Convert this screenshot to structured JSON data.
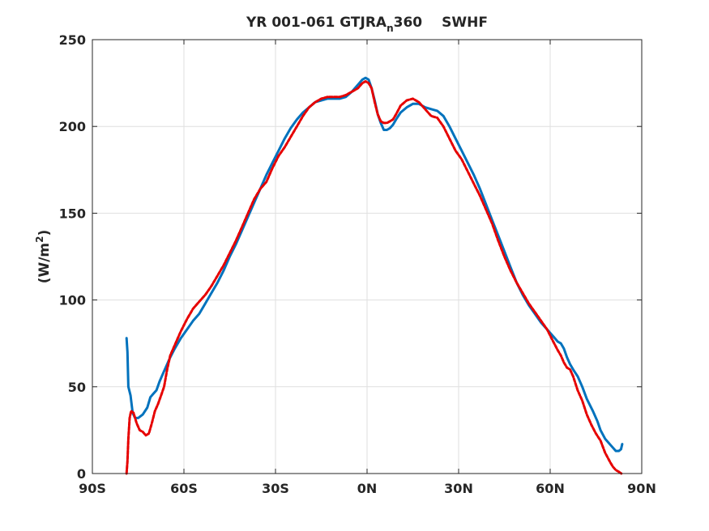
{
  "chart_data": {
    "type": "line",
    "title": {
      "prefix": "YR 001-061 GTJRA",
      "subscript": "n",
      "suffix": "360",
      "field": "SWHF"
    },
    "xlabel": "",
    "ylabel": {
      "prefix": "(W/m",
      "superscript": "2",
      "suffix": ")"
    },
    "xlim": [
      -90,
      90
    ],
    "ylim": [
      0,
      250
    ],
    "grid": true,
    "x_ticks": [
      {
        "value": -90,
        "label": "90S"
      },
      {
        "value": -60,
        "label": "60S"
      },
      {
        "value": -30,
        "label": "30S"
      },
      {
        "value": 0,
        "label": "0N"
      },
      {
        "value": 30,
        "label": "30N"
      },
      {
        "value": 60,
        "label": "60N"
      },
      {
        "value": 90,
        "label": "90N"
      }
    ],
    "y_ticks": [
      {
        "value": 0,
        "label": "0"
      },
      {
        "value": 50,
        "label": "50"
      },
      {
        "value": 100,
        "label": "100"
      },
      {
        "value": 150,
        "label": "150"
      },
      {
        "value": 200,
        "label": "200"
      },
      {
        "value": 250,
        "label": "250"
      }
    ],
    "series": [
      {
        "color": "#0072bd",
        "style": "solid",
        "points": [
          [
            -78.8,
            78
          ],
          [
            -78.5,
            70
          ],
          [
            -78.2,
            50
          ],
          [
            -77.5,
            45
          ],
          [
            -76.8,
            35
          ],
          [
            -76,
            32
          ],
          [
            -75,
            32
          ],
          [
            -73.5,
            34
          ],
          [
            -72,
            38
          ],
          [
            -71,
            44
          ],
          [
            -70,
            46
          ],
          [
            -69,
            48
          ],
          [
            -68,
            53
          ],
          [
            -67,
            57
          ],
          [
            -66,
            61
          ],
          [
            -64.5,
            67
          ],
          [
            -63,
            72
          ],
          [
            -61,
            78
          ],
          [
            -59,
            83
          ],
          [
            -57,
            88
          ],
          [
            -55,
            92
          ],
          [
            -53,
            98
          ],
          [
            -51,
            104
          ],
          [
            -49,
            110
          ],
          [
            -47,
            117
          ],
          [
            -45,
            125
          ],
          [
            -43,
            132
          ],
          [
            -41,
            140
          ],
          [
            -39,
            148
          ],
          [
            -37,
            156
          ],
          [
            -35,
            164
          ],
          [
            -33,
            172
          ],
          [
            -31,
            179
          ],
          [
            -29,
            186
          ],
          [
            -27,
            193
          ],
          [
            -25,
            199
          ],
          [
            -23,
            204
          ],
          [
            -21,
            208
          ],
          [
            -19,
            211
          ],
          [
            -17,
            214
          ],
          [
            -15,
            215
          ],
          [
            -13,
            216
          ],
          [
            -11,
            216
          ],
          [
            -9,
            216
          ],
          [
            -7,
            217
          ],
          [
            -5,
            220
          ],
          [
            -3,
            224
          ],
          [
            -1.5,
            227
          ],
          [
            -0.5,
            228
          ],
          [
            0.5,
            227
          ],
          [
            1.5,
            222
          ],
          [
            2.5,
            215
          ],
          [
            3.5,
            207
          ],
          [
            4.5,
            202
          ],
          [
            5.5,
            198
          ],
          [
            6.5,
            198
          ],
          [
            7.5,
            199
          ],
          [
            8.5,
            201
          ],
          [
            9.5,
            204
          ],
          [
            11,
            208
          ],
          [
            13,
            211
          ],
          [
            15,
            213
          ],
          [
            17,
            213
          ],
          [
            19,
            211
          ],
          [
            21,
            210
          ],
          [
            23,
            209
          ],
          [
            25,
            206
          ],
          [
            27,
            200
          ],
          [
            29,
            193
          ],
          [
            31,
            186
          ],
          [
            33,
            179
          ],
          [
            35,
            172
          ],
          [
            37,
            164
          ],
          [
            39,
            155
          ],
          [
            41,
            146
          ],
          [
            43,
            137
          ],
          [
            45,
            128
          ],
          [
            47,
            119
          ],
          [
            49,
            110
          ],
          [
            51,
            103
          ],
          [
            53,
            97
          ],
          [
            55,
            92
          ],
          [
            57,
            87
          ],
          [
            59,
            83
          ],
          [
            61,
            79
          ],
          [
            62.5,
            76
          ],
          [
            63.5,
            75
          ],
          [
            64.5,
            72
          ],
          [
            65.5,
            67
          ],
          [
            66.5,
            63
          ],
          [
            67.5,
            60
          ],
          [
            69,
            56
          ],
          [
            70.5,
            50
          ],
          [
            72,
            43
          ],
          [
            74,
            36
          ],
          [
            75.5,
            30
          ],
          [
            76.5,
            25
          ],
          [
            78,
            20
          ],
          [
            80,
            16
          ],
          [
            81.5,
            13
          ],
          [
            82.5,
            13
          ],
          [
            83.2,
            14
          ],
          [
            83.6,
            17
          ]
        ]
      },
      {
        "color": "#e60000",
        "style": "dashed",
        "points": [
          [
            -78.8,
            0
          ],
          [
            -78.5,
            7
          ],
          [
            -78.2,
            20
          ],
          [
            -77.8,
            32
          ],
          [
            -77.3,
            36
          ],
          [
            -76.5,
            35
          ],
          [
            -75.5,
            29
          ],
          [
            -74.5,
            25
          ],
          [
            -73.5,
            24
          ],
          [
            -72.5,
            22
          ],
          [
            -71.5,
            23
          ],
          [
            -70.5,
            29
          ],
          [
            -69.5,
            36
          ],
          [
            -68.5,
            40
          ],
          [
            -67.5,
            45
          ],
          [
            -66.5,
            50
          ],
          [
            -65.5,
            60
          ],
          [
            -64.5,
            68
          ],
          [
            -63,
            74
          ],
          [
            -61,
            82
          ],
          [
            -59,
            89
          ],
          [
            -57,
            95
          ],
          [
            -55,
            99
          ],
          [
            -53,
            103
          ],
          [
            -51,
            108
          ],
          [
            -49,
            114
          ],
          [
            -47,
            120
          ],
          [
            -45,
            127
          ],
          [
            -43,
            134
          ],
          [
            -41,
            142
          ],
          [
            -39,
            150
          ],
          [
            -37,
            158
          ],
          [
            -35,
            164
          ],
          [
            -33,
            168
          ],
          [
            -31,
            176
          ],
          [
            -29,
            183
          ],
          [
            -27,
            188
          ],
          [
            -25,
            194
          ],
          [
            -23,
            200
          ],
          [
            -21,
            206
          ],
          [
            -19,
            211
          ],
          [
            -17,
            214
          ],
          [
            -15,
            216
          ],
          [
            -13,
            217
          ],
          [
            -11,
            217
          ],
          [
            -9,
            217
          ],
          [
            -7,
            218
          ],
          [
            -5,
            220
          ],
          [
            -3,
            222
          ],
          [
            -1.5,
            225
          ],
          [
            -0.5,
            226
          ],
          [
            0.5,
            225
          ],
          [
            1.5,
            222
          ],
          [
            2.5,
            214
          ],
          [
            3.5,
            207
          ],
          [
            4.5,
            203
          ],
          [
            5.5,
            202
          ],
          [
            6.5,
            202
          ],
          [
            7.5,
            203
          ],
          [
            8.5,
            204
          ],
          [
            9.5,
            207
          ],
          [
            11,
            212
          ],
          [
            13,
            215
          ],
          [
            15,
            216
          ],
          [
            17,
            214
          ],
          [
            19,
            210
          ],
          [
            21,
            206
          ],
          [
            23,
            205
          ],
          [
            25,
            200
          ],
          [
            27,
            193
          ],
          [
            29,
            186
          ],
          [
            31,
            181
          ],
          [
            33,
            174
          ],
          [
            35,
            167
          ],
          [
            37,
            160
          ],
          [
            39,
            152
          ],
          [
            41,
            144
          ],
          [
            43,
            134
          ],
          [
            45,
            125
          ],
          [
            47,
            117
          ],
          [
            49,
            110
          ],
          [
            51,
            104
          ],
          [
            53,
            98
          ],
          [
            55,
            93
          ],
          [
            57,
            88
          ],
          [
            59,
            83
          ],
          [
            61,
            76
          ],
          [
            62.5,
            71
          ],
          [
            63.5,
            68
          ],
          [
            64.5,
            64
          ],
          [
            65.5,
            61
          ],
          [
            66.5,
            60
          ],
          [
            67.5,
            56
          ],
          [
            69,
            48
          ],
          [
            70.5,
            42
          ],
          [
            72,
            34
          ],
          [
            73.5,
            28
          ],
          [
            75,
            23
          ],
          [
            76.5,
            19
          ],
          [
            78,
            12
          ],
          [
            79.5,
            7
          ],
          [
            80.5,
            4
          ],
          [
            81.5,
            2
          ],
          [
            82.5,
            1
          ],
          [
            83.3,
            0
          ]
        ]
      }
    ]
  }
}
